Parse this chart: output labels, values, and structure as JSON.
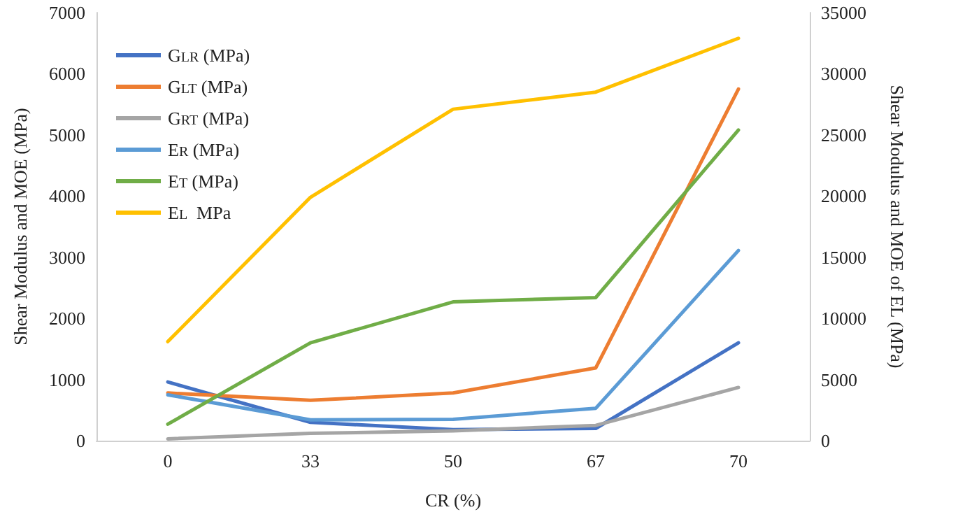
{
  "chart_data": {
    "type": "line",
    "categories": [
      "0",
      "33",
      "50",
      "67",
      "70"
    ],
    "xlabel": "CR (%)",
    "ylabel": "Shear Modulus and MOE (MPa)",
    "y2label": "Shear Modulus and MOE of EL (MPa)",
    "ylim": [
      0,
      7000
    ],
    "yticks": [
      0,
      1000,
      2000,
      3000,
      4000,
      5000,
      6000,
      7000
    ],
    "y2lim": [
      0,
      35000
    ],
    "y2ticks": [
      0,
      5000,
      10000,
      15000,
      20000,
      25000,
      30000,
      35000
    ],
    "grid": false,
    "legend": "top left",
    "marker": "none",
    "line_style": "solid",
    "series": [
      {
        "name": "G$_{LR}$ (MPa)",
        "color": "#4472c4",
        "values": [
          960,
          300,
          180,
          200,
          1600
        ]
      },
      {
        "name": "G$_{LT}$ (MPa)",
        "color": "#ed7d31",
        "values": [
          780,
          660,
          780,
          1190,
          5750
        ]
      },
      {
        "name": "G$_{RT}$ (MPa)",
        "color": "#a5a5a5",
        "values": [
          30,
          120,
          160,
          250,
          870
        ]
      },
      {
        "name": "E$_{R}$ (MPa)",
        "color": "#5b9bd5",
        "values": [
          750,
          340,
          350,
          530,
          3110
        ]
      },
      {
        "name": "E$_{T}$ (MPa)",
        "color": "#70ad47",
        "values": [
          270,
          1600,
          2270,
          2340,
          5080
        ]
      },
      {
        "name": "E$_{L}$  MPa",
        "color": "#ffc000",
        "axis": "y2",
        "values": [
          8100,
          19900,
          27100,
          28500,
          32900
        ]
      }
    ]
  }
}
